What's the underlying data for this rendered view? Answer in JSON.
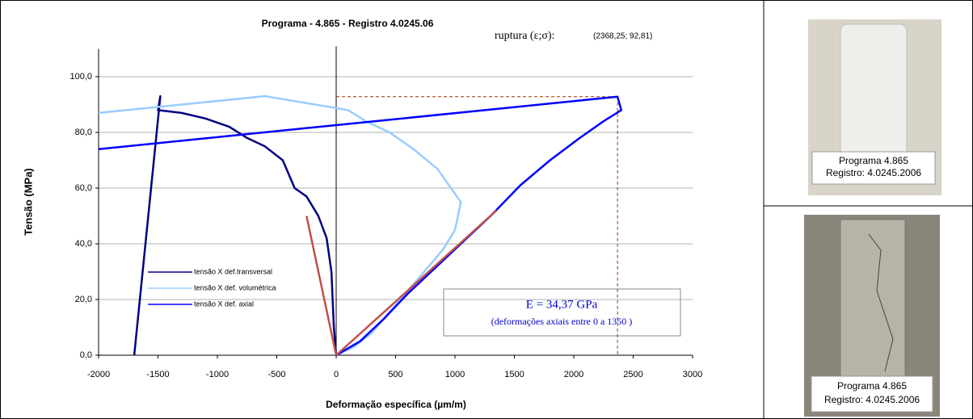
{
  "chart_data": {
    "type": "line",
    "title": "Programa - 4.865 - Registro 4.0245.06",
    "annotation_label": "ruptura (ε;σ):",
    "annotation_value": "(2368,25; 92,81)",
    "x_label": "Deformação específica (µm/m)",
    "y_label": "Tensão (MPa)",
    "xlim": [
      -2000,
      3000
    ],
    "xticks": [
      -2000,
      -1500,
      -1000,
      -500,
      0,
      500,
      1000,
      1500,
      2000,
      2500,
      3000
    ],
    "ylim": [
      0,
      110
    ],
    "yticks": [
      {
        "value": 0,
        "label": "0,0"
      },
      {
        "value": 20,
        "label": "20,0"
      },
      {
        "value": 40,
        "label": "40,0"
      },
      {
        "value": 60,
        "label": "60,0"
      },
      {
        "value": 80,
        "label": "80,0"
      },
      {
        "value": 100,
        "label": "100,0"
      }
    ],
    "grid": true,
    "series": [
      {
        "name": "tensão X def.transversal",
        "color": "#000080",
        "x": [
          -1700,
          -1480,
          -1500,
          -1300,
          -1100,
          -900,
          -750,
          -600,
          -450,
          -350,
          -250,
          -150,
          -80,
          -40,
          -20,
          0
        ],
        "values": [
          0,
          93,
          88,
          87,
          85,
          82,
          78,
          75,
          70,
          60,
          57,
          50,
          42,
          30,
          10,
          0
        ]
      },
      {
        "name": "tensão X def. volumétrica",
        "color": "#99ccff",
        "x": [
          -2000,
          -600,
          100,
          250,
          450,
          650,
          850,
          1050,
          1000,
          900,
          700,
          500,
          300,
          150,
          0
        ],
        "values": [
          87,
          93,
          88,
          84,
          80,
          74,
          67,
          55,
          45,
          38,
          28,
          18,
          8,
          3,
          0
        ]
      },
      {
        "name": "tensão X def. axial",
        "color": "#0000ff",
        "x": [
          -2000,
          2368.25,
          2400,
          2250,
          2050,
          1800,
          1550,
          1300,
          1050,
          800,
          600,
          400,
          200,
          0
        ],
        "values": [
          74,
          92.81,
          88,
          84,
          78,
          70,
          61,
          50,
          40,
          30,
          22,
          13,
          5,
          0
        ]
      }
    ],
    "fit_lines": [
      {
        "color": "#c0504d",
        "x": [
          0,
          -250
        ],
        "values": [
          0,
          50
        ]
      },
      {
        "color": "#c0504d",
        "x": [
          0,
          1350
        ],
        "values": [
          0,
          52
        ]
      }
    ],
    "rupture": {
      "x": 2368.25,
      "y": 92.81,
      "color": "#993300"
    },
    "modulus_text": "E = 34,37 GPa",
    "modulus_note": "(deformações axiais entre 0 a 1350 )"
  },
  "photos": [
    {
      "line1": "Programa 4.865",
      "line2": "Registro: 4.0245.2006"
    },
    {
      "line1": "Programa 4.865",
      "line2": "Registro: 4.0245.2006"
    }
  ]
}
